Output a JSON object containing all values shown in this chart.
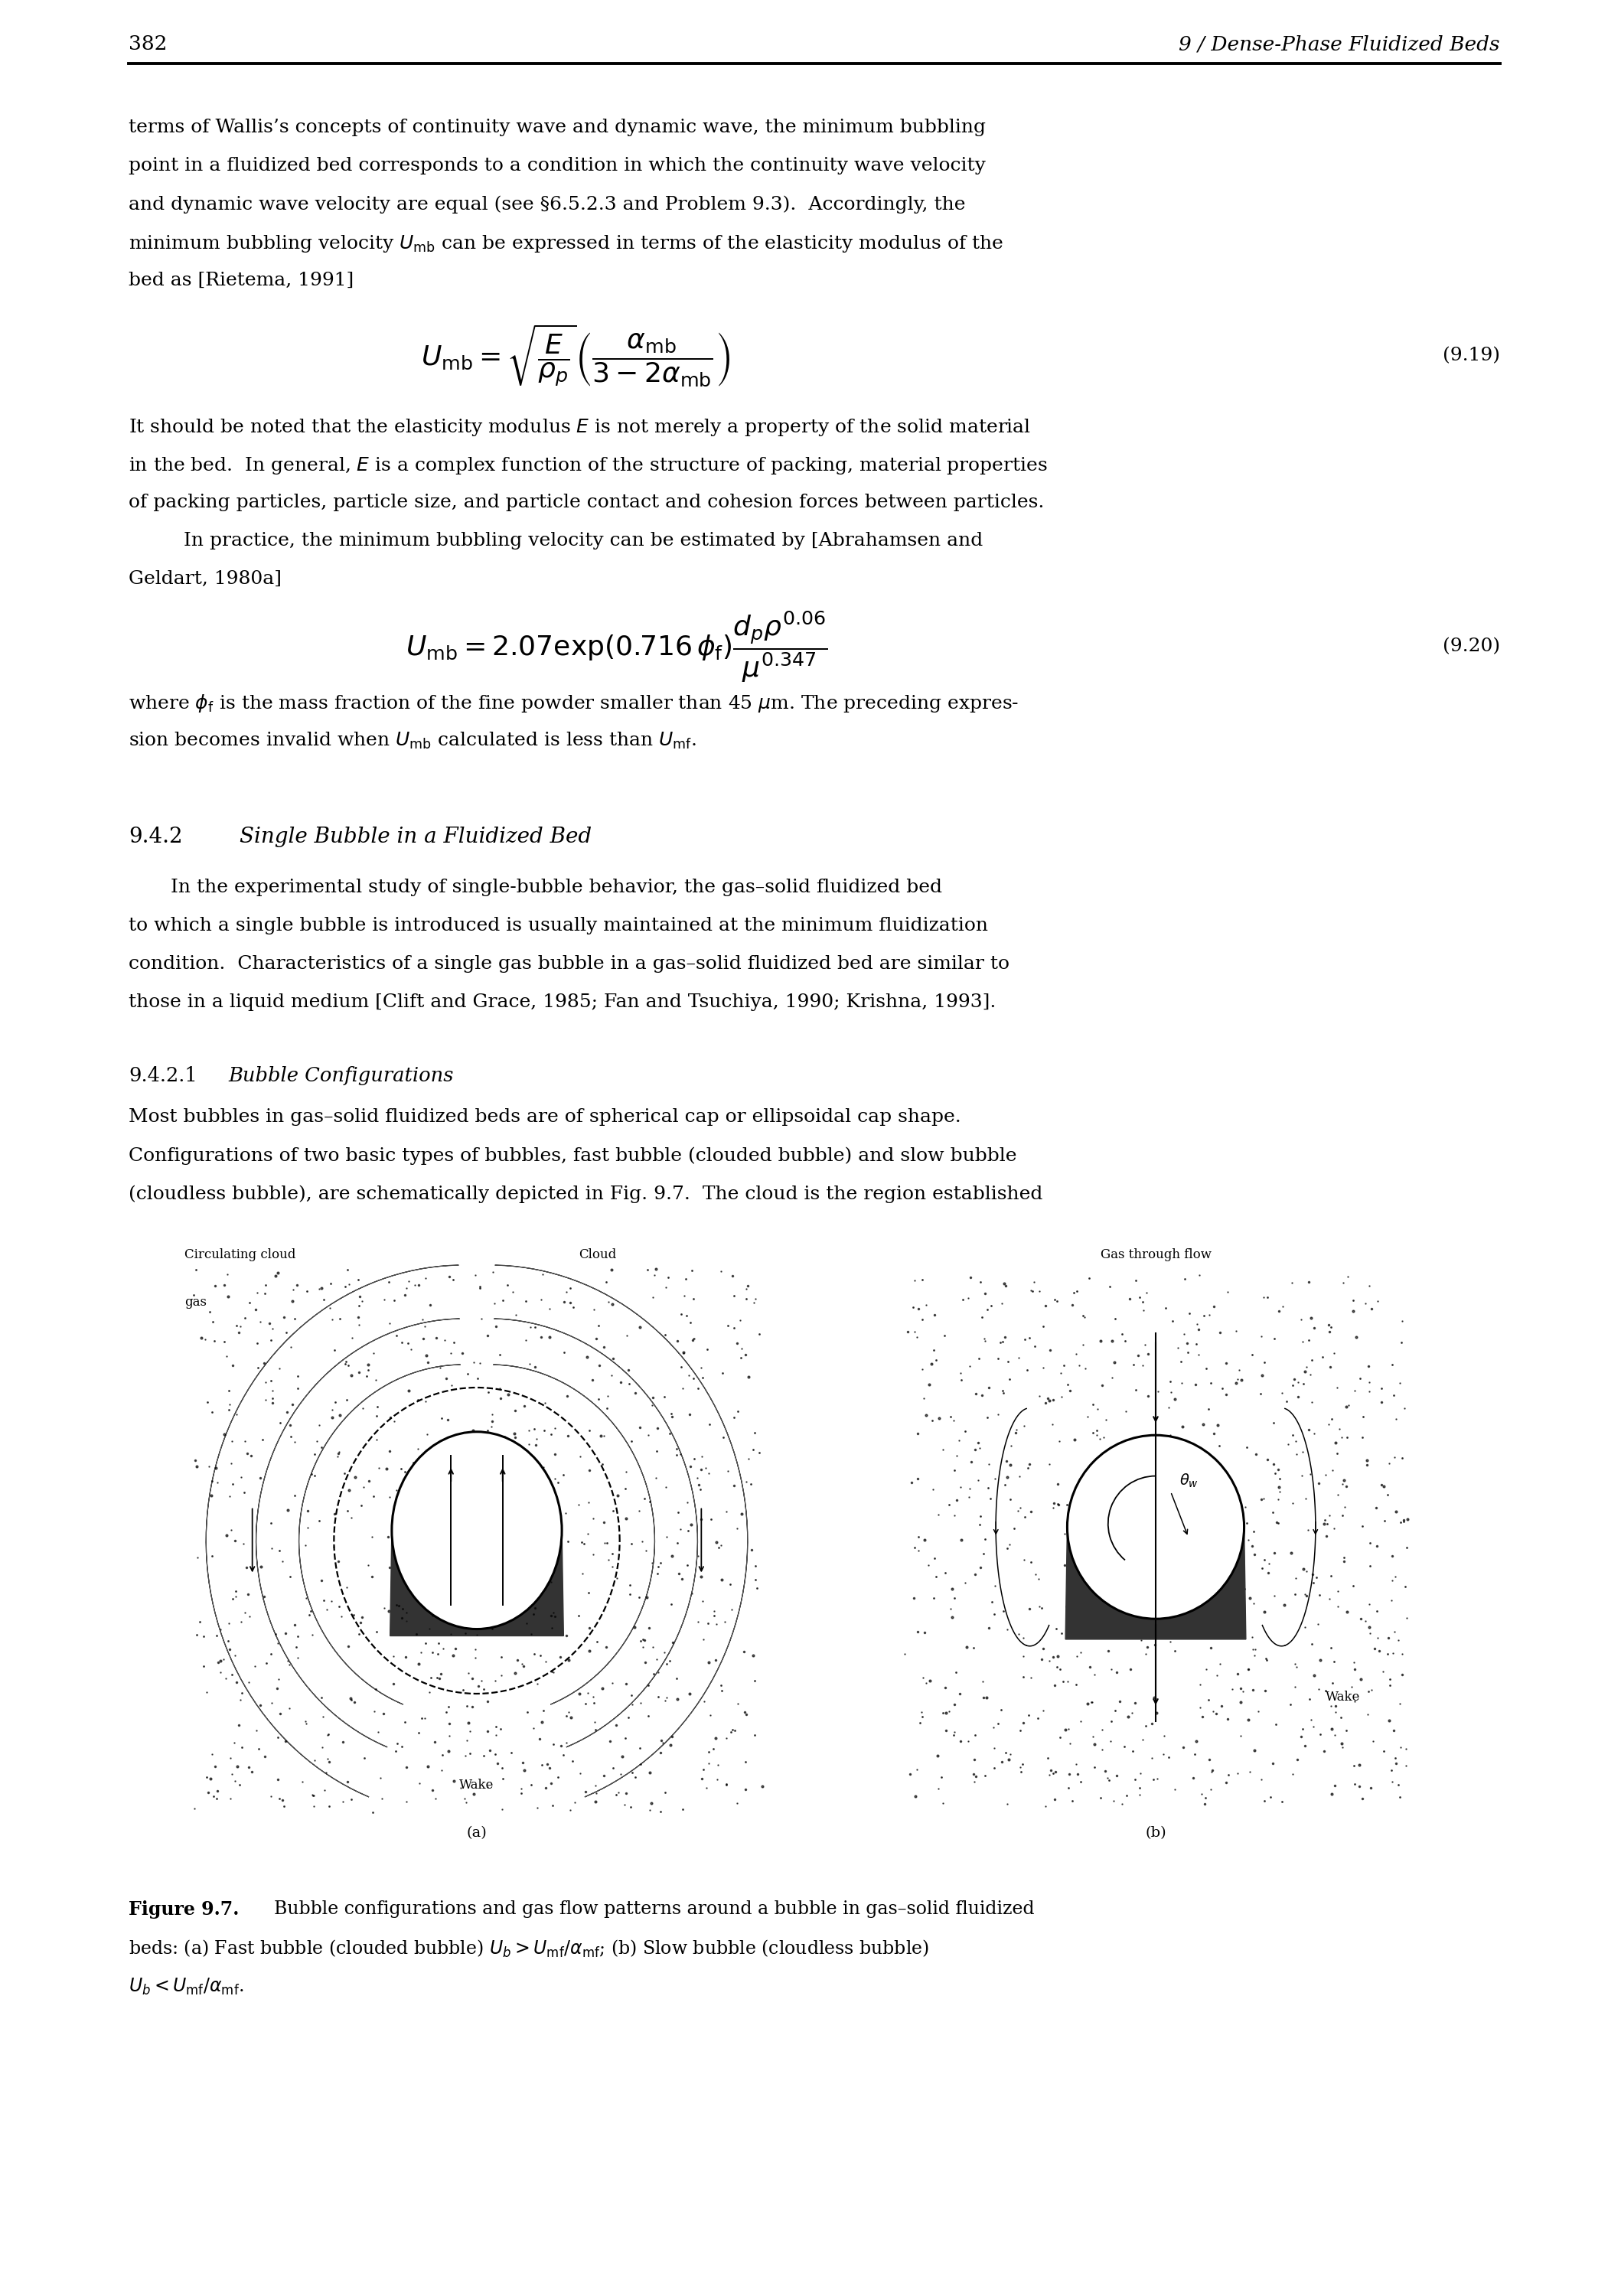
{
  "page_number": "382",
  "header_title": "9 / Dense-Phase Fluidized Beds",
  "bg_color": "#ffffff",
  "text_color": "#000000",
  "body_text_lines": [
    "terms of Wallis’s concepts of continuity wave and dynamic wave, the minimum bubbling",
    "point in a fluidized bed corresponds to a condition in which the continuity wave velocity",
    "and dynamic wave velocity are equal (see §6.5.2.3 and Problem 9.3).  Accordingly, the",
    "minimum bubbling velocity $U_{\\mathrm{mb}}$ can be expressed in terms of the elasticity modulus of the",
    "bed as [Rietema, 1991]"
  ],
  "eq1_label": "(9.19)",
  "eq2_label": "(9.20)",
  "text2_lines": [
    "It should be noted that the elasticity modulus $E$ is not merely a property of the solid material",
    "in the bed.  In general, $E$ is a complex function of the structure of packing, material properties",
    "of packing particles, particle size, and particle contact and cohesion forces between particles.",
    "    In practice, the minimum bubbling velocity can be estimated by [Abrahamsen and",
    "Geldart, 1980a]"
  ],
  "text3_lines": [
    "where $\\phi_{\\mathrm{f}}$ is the mass fraction of the fine powder smaller than 45 $\\mu$m. The preceding expres-",
    "sion becomes invalid when $U_{\\mathrm{mb}}$ calculated is less than $U_{\\mathrm{mf}}$."
  ],
  "section_num": "9.4.2",
  "section_title": "Single Bubble in a Fluidized Bed",
  "section_body_lines": [
    "In the experimental study of single-bubble behavior, the gas–solid fluidized bed",
    "to which a single bubble is introduced is usually maintained at the minimum fluidization",
    "condition.  Characteristics of a single gas bubble in a gas–solid fluidized bed are similar to",
    "those in a liquid medium [Clift and Grace, 1985; Fan and Tsuchiya, 1990; Krishna, 1993]."
  ],
  "subsection_num": "9.4.2.1",
  "subsection_title": "Bubble Configurations",
  "subsection_body_lines": [
    "Most bubbles in gas–solid fluidized beds are of spherical cap or ellipsoidal cap shape.",
    "Configurations of two basic types of bubbles, fast bubble (clouded bubble) and slow bubble",
    "(cloudless bubble), are schematically depicted in Fig. 9.7.  The cloud is the region established"
  ],
  "label_a": "(a)",
  "label_b": "(b)",
  "label_cloud": "Cloud",
  "label_circ_line1": "Circulating cloud",
  "label_circ_line2": "gas",
  "label_wake_a": "Wake",
  "label_wake_b": "Wake",
  "label_gas_flow": "Gas through flow",
  "fig_caption_bold": "Figure 9.7.",
  "fig_caption_rest": "  Bubble configurations and gas flow patterns around a bubble in gas–solid fluidized",
  "fig_caption2": "beds: (a) Fast bubble (clouded bubble) $U_b > U_{\\mathrm{mf}}/\\alpha_{\\mathrm{mf}}$; (b) Slow bubble (cloudless bubble)",
  "fig_caption3": "$U_b < U_{\\mathrm{mf}}/\\alpha_{\\mathrm{mf}}$."
}
